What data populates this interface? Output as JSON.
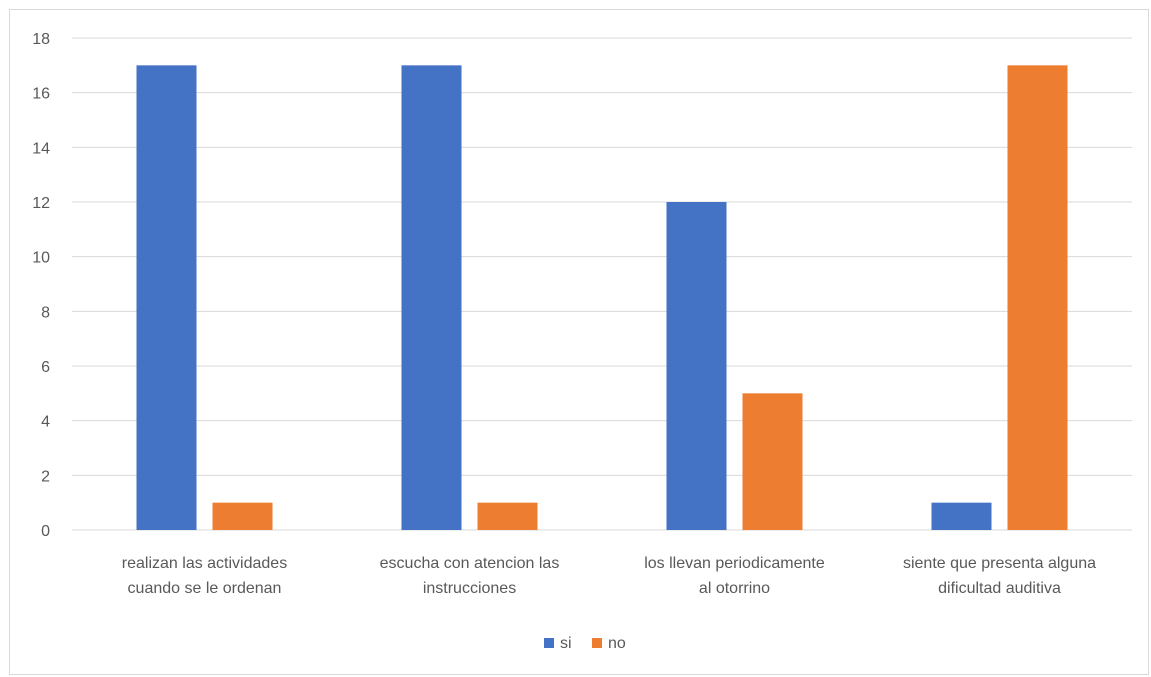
{
  "chart_data": {
    "type": "bar",
    "categories": [
      [
        "realizan las actividades",
        "cuando se le ordenan"
      ],
      [
        "escucha con atencion las",
        "instrucciones"
      ],
      [
        "los llevan periodicamente",
        "al otorrino"
      ],
      [
        "siente que presenta alguna",
        "dificultad auditiva"
      ]
    ],
    "series": [
      {
        "name": "si",
        "color": "#4472c4",
        "values": [
          17,
          17,
          12,
          1
        ]
      },
      {
        "name": "no",
        "color": "#ed7d31",
        "values": [
          1,
          1,
          5,
          17
        ]
      }
    ],
    "ylim": [
      0,
      18
    ],
    "yticks": [
      0,
      2,
      4,
      6,
      8,
      10,
      12,
      14,
      16,
      18
    ],
    "grid": true,
    "legend": "bottom-center",
    "gridColor": "#d9d9d9"
  }
}
